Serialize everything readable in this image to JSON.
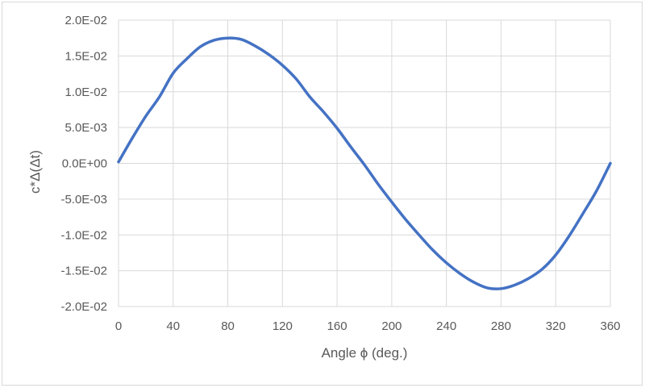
{
  "chart_data": {
    "type": "line",
    "title": "",
    "xlabel": "Angle ϕ (deg.)",
    "ylabel": "c*Δ(Δt)",
    "xlim": [
      0,
      360
    ],
    "ylim": [
      -0.02,
      0.02
    ],
    "x_ticks": [
      0,
      40,
      80,
      120,
      160,
      200,
      240,
      280,
      320,
      360
    ],
    "x_tick_labels": [
      "0",
      "40",
      "80",
      "120",
      "160",
      "200",
      "240",
      "280",
      "320",
      "360"
    ],
    "y_ticks": [
      0.02,
      0.015,
      0.01,
      0.005,
      0,
      -0.005,
      -0.01,
      -0.015,
      -0.02
    ],
    "y_tick_labels": [
      "2.0E-02",
      "1.5E-02",
      "1.0E-02",
      "5.0E-03",
      "0.0E+00",
      "-5.0E-03",
      "-1.0E-02",
      "-1.5E-02",
      "-2.0E-02"
    ],
    "grid": {
      "vertical": true,
      "horizontal": true,
      "color": "#d9d9d9"
    },
    "series": [
      {
        "color": "#4472c4",
        "x": [
          0,
          10,
          20,
          30,
          40,
          50,
          60,
          70,
          80,
          90,
          100,
          110,
          120,
          130,
          140,
          150,
          160,
          170,
          180,
          190,
          200,
          210,
          220,
          230,
          240,
          250,
          260,
          270,
          280,
          290,
          300,
          310,
          320,
          330,
          340,
          350,
          360
        ],
        "y": [
          0.0002,
          0.0035,
          0.0066,
          0.0093,
          0.0126,
          0.0146,
          0.0163,
          0.0172,
          0.0175,
          0.0173,
          0.0164,
          0.0152,
          0.0137,
          0.0118,
          0.0093,
          0.0072,
          0.0049,
          0.0023,
          -0.0002,
          -0.0029,
          -0.0054,
          -0.0078,
          -0.01,
          -0.0121,
          -0.0139,
          -0.0154,
          -0.0166,
          -0.0174,
          -0.0175,
          -0.017,
          -0.0161,
          -0.0148,
          -0.0128,
          -0.0101,
          -0.007,
          -0.0038,
          0.0
        ]
      }
    ]
  }
}
